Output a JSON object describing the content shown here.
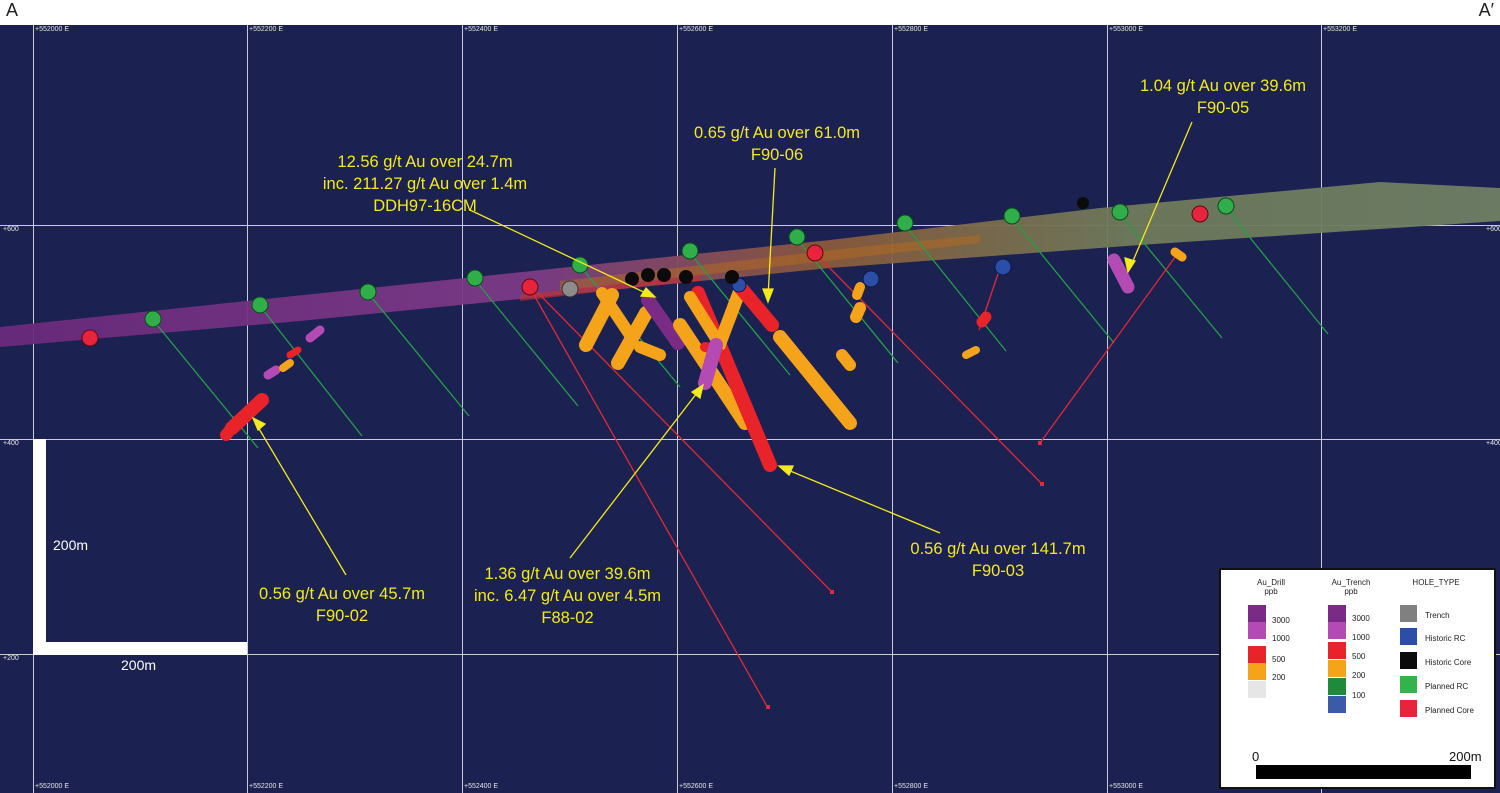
{
  "section": {
    "start_label": "A",
    "end_label": "A′"
  },
  "eastings": [
    "+552000 E",
    "+552200 E",
    "+552400 E",
    "+552600 E",
    "+552800 E",
    "+553000 E",
    "+553200 E"
  ],
  "elevations": [
    "+600",
    "+400",
    "+200"
  ],
  "callouts": {
    "f90_05": {
      "line1": "1.04 g/t Au over 39.6m",
      "line2": "F90-05"
    },
    "f90_06": {
      "line1": "0.65 g/t Au over 61.0m",
      "line2": "F90-06"
    },
    "ddh97": {
      "line1": "12.56 g/t Au over 24.7m",
      "line2": "inc. 211.27 g/t Au over 1.4m",
      "line3": "DDH97-16CM"
    },
    "f90_02": {
      "line1": "0.56 g/t Au over 45.7m",
      "line2": "F90-02"
    },
    "f88_02": {
      "line1": "1.36 g/t Au over 39.6m",
      "line2": "inc. 6.47 g/t Au over 4.5m",
      "line3": "F88-02"
    },
    "f90_03": {
      "line1": "0.56 g/t Au over 141.7m",
      "line2": "F90-03"
    }
  },
  "scale_bar": {
    "vertical": "200m",
    "horizontal": "200m"
  },
  "legend": {
    "au_drill": {
      "title": "Au_Drill",
      "unit": "ppb",
      "labels": [
        "3000",
        "1000",
        "500",
        "200"
      ],
      "colors": [
        "#7a2b86",
        "#b44bb4",
        "#e8242a",
        "#f5a31a",
        "#e6e6e6"
      ]
    },
    "au_trench": {
      "title": "Au_Trench",
      "unit": "ppb",
      "labels": [
        "3000",
        "1000",
        "500",
        "200",
        "100"
      ],
      "colors": [
        "#7a2b86",
        "#b44bb4",
        "#e8242a",
        "#f5a31a",
        "#1e8a3c",
        "#3b5ba9"
      ]
    },
    "hole_type": {
      "title": "HOLE_TYPE",
      "items": [
        {
          "label": "Trench",
          "color": "#808080"
        },
        {
          "label": "Historic RC",
          "color": "#2b4fa8"
        },
        {
          "label": "Historic Core",
          "color": "#0b0b0b"
        },
        {
          "label": "Planned RC",
          "color": "#33b44a"
        },
        {
          "label": "Planned Core",
          "color": "#e8243c"
        }
      ]
    },
    "scale": {
      "zero": "0",
      "end": "200m"
    }
  },
  "colors": {
    "background": "#1b2151",
    "grid": "#c9ccd8",
    "callout_text": "#f3ea1c"
  }
}
